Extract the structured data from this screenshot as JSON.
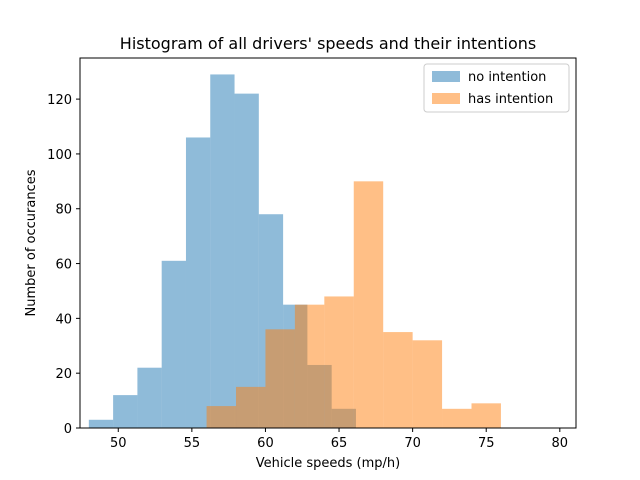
{
  "chart_data": {
    "type": "bar",
    "title": "Histogram of all drivers' speeds and their intentions",
    "xlabel": "Vehicle speeds (mp/h)",
    "ylabel": "Number of occurances",
    "xlim": [
      47.4,
      81.1
    ],
    "ylim": [
      0,
      135
    ],
    "xticks": [
      50,
      55,
      60,
      65,
      70,
      75,
      80
    ],
    "yticks": [
      0,
      20,
      40,
      60,
      80,
      100,
      120
    ],
    "grid": false,
    "legend": "top-right",
    "series": [
      {
        "name": "no intention",
        "color": "#1f77b4",
        "alpha": 0.5,
        "bin_edges": [
          48.0,
          49.65,
          51.3,
          52.95,
          54.6,
          56.25,
          57.9,
          59.55,
          61.2,
          62.85,
          64.5,
          66.15,
          67.8
        ],
        "counts": [
          3,
          12,
          22,
          61,
          106,
          129,
          122,
          78,
          45,
          23,
          7,
          0
        ]
      },
      {
        "name": "has intention",
        "color": "#ff7f0e",
        "alpha": 0.5,
        "bin_edges": [
          56.0,
          58.0,
          60.0,
          62.0,
          64.0,
          66.0,
          68.0,
          70.0,
          72.0,
          74.0,
          76.0,
          78.0,
          80.0
        ],
        "counts": [
          8,
          15,
          36,
          45,
          48,
          90,
          35,
          32,
          7,
          9,
          0,
          0
        ]
      }
    ]
  }
}
